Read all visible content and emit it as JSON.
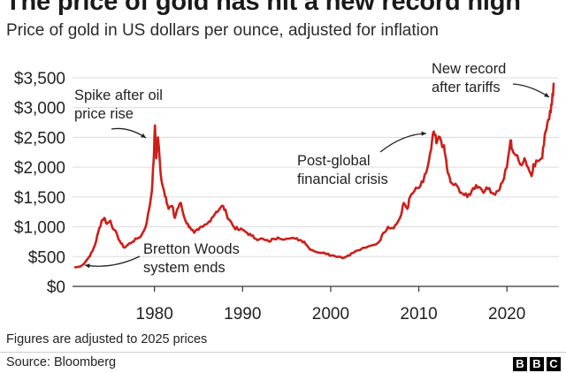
{
  "header": {
    "title": "The price of gold has hit a new record high",
    "subtitle": "Price of gold in US dollars per ounce, adjusted for inflation"
  },
  "footer": {
    "note": "Figures are adjusted to 2025 prices",
    "source": "Source: Bloomberg",
    "logo_letters": [
      "B",
      "B",
      "C"
    ]
  },
  "colors": {
    "line": "#cc1f1a",
    "grid": "#dcdcdc",
    "axis": "#333333",
    "text": "#222222"
  },
  "chart_data": {
    "type": "line",
    "title": "The price of gold has hit a new record high",
    "subtitle": "Price of gold in US dollars per ounce, adjusted for inflation",
    "xlabel": "",
    "ylabel": "",
    "xlim": [
      1970.7,
      2025.5
    ],
    "ylim": [
      0,
      3500
    ],
    "x_ticks": [
      1980,
      1990,
      2000,
      2010,
      2020
    ],
    "x_tick_labels": [
      "1980",
      "1990",
      "2000",
      "2010",
      "2020"
    ],
    "y_ticks": [
      0,
      500,
      1000,
      1500,
      2000,
      2500,
      3000,
      3500
    ],
    "y_tick_labels": [
      "$0",
      "$500",
      "$1,000",
      "$1,500",
      "$2,000",
      "$2,500",
      "$3,000",
      "$3,500"
    ],
    "grid": true,
    "series": [
      {
        "name": "",
        "x": [
          1971.0,
          1971.5,
          1972.0,
          1972.5,
          1973.0,
          1973.3,
          1973.6,
          1974.0,
          1974.3,
          1974.6,
          1975.0,
          1975.4,
          1975.8,
          1976.2,
          1976.6,
          1977.0,
          1977.5,
          1978.0,
          1978.5,
          1979.0,
          1979.4,
          1979.7,
          1979.9,
          1980.05,
          1980.2,
          1980.4,
          1980.7,
          1981.0,
          1981.3,
          1981.6,
          1982.0,
          1982.3,
          1982.6,
          1983.0,
          1983.3,
          1983.7,
          1984.0,
          1984.5,
          1985.0,
          1985.5,
          1986.0,
          1986.5,
          1987.0,
          1987.4,
          1987.8,
          1988.2,
          1988.6,
          1989.0,
          1989.5,
          1990.0,
          1990.5,
          1991.0,
          1991.5,
          1992.0,
          1992.5,
          1993.0,
          1993.5,
          1994.0,
          1995.0,
          1996.0,
          1996.5,
          1997.0,
          1997.5,
          1998.0,
          1999.0,
          1999.7,
          2000.0,
          2001.0,
          2001.5,
          2002.0,
          2002.5,
          2003.0,
          2004.0,
          2005.0,
          2005.5,
          2006.0,
          2006.5,
          2007.0,
          2007.5,
          2008.0,
          2008.3,
          2008.7,
          2009.0,
          2009.5,
          2010.0,
          2010.5,
          2011.0,
          2011.4,
          2011.7,
          2012.0,
          2012.4,
          2012.8,
          2013.0,
          2013.3,
          2013.6,
          2014.0,
          2014.5,
          2015.0,
          2015.5,
          2016.0,
          2016.5,
          2017.0,
          2017.5,
          2018.0,
          2018.5,
          2019.0,
          2019.5,
          2020.0,
          2020.4,
          2020.6,
          2021.0,
          2021.5,
          2022.0,
          2022.4,
          2022.8,
          2023.0,
          2023.5,
          2024.0,
          2024.3,
          2024.6,
          2024.9,
          2025.1,
          2025.3
        ],
        "values": [
          320,
          330,
          380,
          480,
          600,
          720,
          900,
          1100,
          1150,
          1050,
          1100,
          950,
          850,
          720,
          650,
          700,
          750,
          800,
          850,
          1000,
          1300,
          1600,
          2100,
          2700,
          2150,
          2500,
          1900,
          1650,
          1500,
          1300,
          1350,
          1150,
          1300,
          1400,
          1200,
          1050,
          1000,
          900,
          950,
          1000,
          1050,
          1150,
          1250,
          1300,
          1350,
          1200,
          1100,
          1000,
          950,
          950,
          900,
          850,
          800,
          800,
          780,
          750,
          800,
          820,
          800,
          800,
          780,
          750,
          650,
          600,
          560,
          550,
          520,
          500,
          480,
          520,
          560,
          600,
          650,
          700,
          750,
          900,
          1000,
          980,
          1050,
          1200,
          1400,
          1300,
          1500,
          1600,
          1650,
          1750,
          2000,
          2300,
          2600,
          2400,
          2500,
          2350,
          2200,
          1900,
          1750,
          1700,
          1650,
          1550,
          1500,
          1600,
          1700,
          1650,
          1600,
          1650,
          1550,
          1600,
          1750,
          2000,
          2450,
          2300,
          2200,
          2050,
          2150,
          2000,
          1850,
          2050,
          2100,
          2150,
          2550,
          2750,
          2950,
          3050,
          3400
        ]
      }
    ],
    "annotations": [
      {
        "lines": [
          "Spike after oil",
          "price rise"
        ],
        "x": 1979.9,
        "y": 2700
      },
      {
        "lines": [
          "Bretton Woods",
          "system ends"
        ],
        "x": 1971.5,
        "y": 330
      },
      {
        "lines": [
          "Post-global",
          "financial crisis"
        ],
        "x": 2011.5,
        "y": 2600
      },
      {
        "lines": [
          "New record",
          "after tariffs"
        ],
        "x": 2025.2,
        "y": 3330
      }
    ]
  }
}
